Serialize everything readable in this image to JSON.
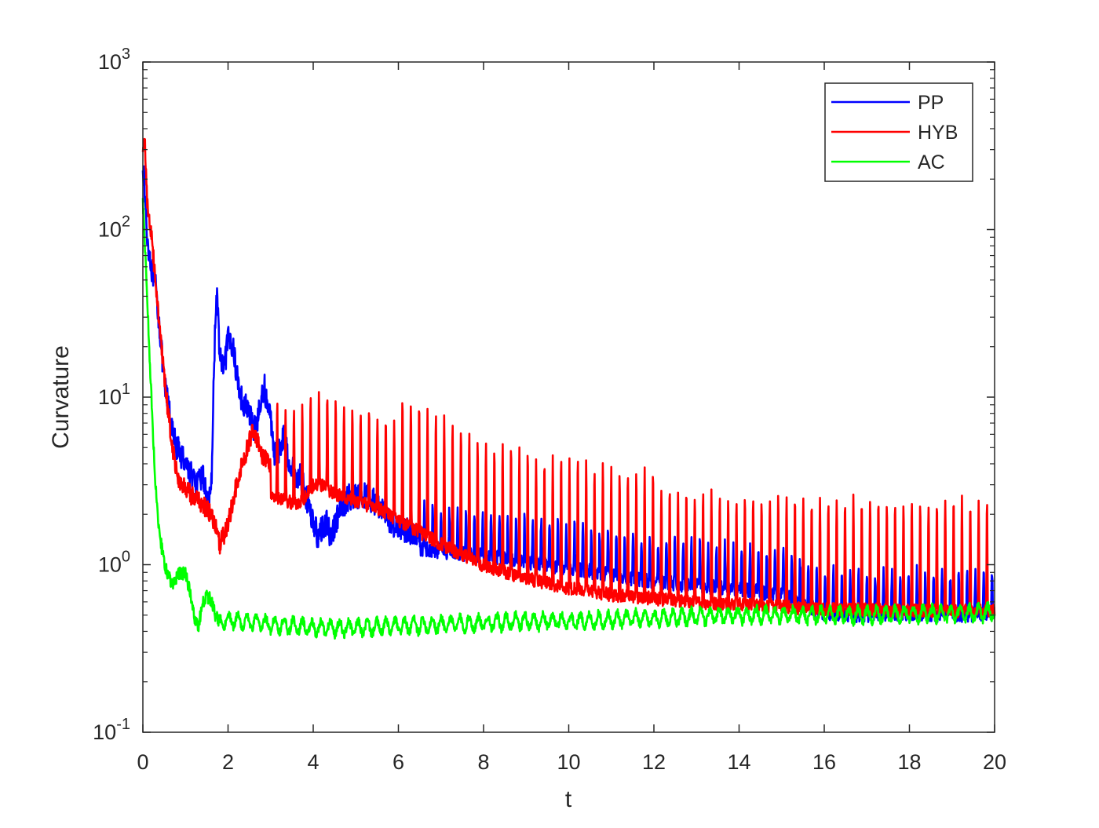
{
  "chart_data": {
    "type": "line",
    "title": "",
    "xlabel": "t",
    "ylabel": "Curvature",
    "xlim": [
      0,
      20
    ],
    "ylim": [
      0.1,
      1000
    ],
    "yscale": "log",
    "grid": false,
    "legend_position": "top-right",
    "x_ticks": [
      "0",
      "2",
      "4",
      "6",
      "8",
      "10",
      "12",
      "14",
      "16",
      "18",
      "20"
    ],
    "y_ticks": [
      {
        "base": "10",
        "exp": "-1",
        "value": 0.1
      },
      {
        "base": "10",
        "exp": "0",
        "value": 1
      },
      {
        "base": "10",
        "exp": "1",
        "value": 10
      },
      {
        "base": "10",
        "exp": "2",
        "value": 100
      },
      {
        "base": "10",
        "exp": "3",
        "value": 1000
      }
    ],
    "series": [
      {
        "name": "PP",
        "color": "#0000ff",
        "description_points": [
          [
            0,
            260
          ],
          [
            0.1,
            90
          ],
          [
            0.2,
            60
          ],
          [
            0.3,
            45
          ],
          [
            0.4,
            25
          ],
          [
            0.5,
            12
          ],
          [
            0.6,
            9
          ],
          [
            0.7,
            6
          ],
          [
            0.8,
            5
          ],
          [
            0.9,
            4.5
          ],
          [
            1.0,
            4.2
          ],
          [
            1.1,
            3.6
          ],
          [
            1.2,
            3.2
          ],
          [
            1.3,
            3.0
          ],
          [
            1.4,
            3.5
          ],
          [
            1.5,
            2.5
          ],
          [
            1.6,
            2.4
          ],
          [
            1.7,
            30
          ],
          [
            1.75,
            40
          ],
          [
            1.8,
            18
          ],
          [
            1.9,
            14
          ],
          [
            2.0,
            22
          ],
          [
            2.1,
            21
          ],
          [
            2.2,
            14
          ],
          [
            2.3,
            10
          ],
          [
            2.4,
            9
          ],
          [
            2.5,
            8
          ],
          [
            2.6,
            6.5
          ],
          [
            2.7,
            7.5
          ],
          [
            2.8,
            10
          ],
          [
            2.85,
            12
          ],
          [
            2.9,
            9.5
          ],
          [
            3.0,
            7.5
          ],
          [
            3.1,
            4.5
          ],
          [
            3.2,
            4.8
          ],
          [
            3.3,
            6.0
          ],
          [
            3.4,
            4.5
          ],
          [
            3.5,
            3.8
          ],
          [
            3.6,
            3.2
          ],
          [
            3.7,
            3.5
          ],
          [
            3.8,
            2.7
          ],
          [
            3.9,
            2.2
          ],
          [
            4.0,
            1.8
          ],
          [
            4.1,
            1.5
          ],
          [
            4.2,
            1.6
          ],
          [
            4.3,
            1.8
          ],
          [
            4.4,
            1.5
          ],
          [
            4.5,
            1.7
          ],
          [
            4.6,
            2.0
          ],
          [
            4.7,
            2.2
          ],
          [
            4.8,
            2.5
          ],
          [
            5.0,
            2.6
          ],
          [
            5.2,
            2.6
          ],
          [
            5.4,
            2.4
          ],
          [
            5.6,
            2.2
          ],
          [
            5.8,
            1.8
          ],
          [
            6.0,
            1.7
          ],
          [
            6.2,
            1.6
          ],
          [
            6.5,
            1.5
          ],
          [
            7.0,
            1.45
          ],
          [
            8,
            1.35
          ],
          [
            9,
            1.25
          ],
          [
            10,
            1.15
          ],
          [
            11,
            1.05
          ],
          [
            12,
            0.95
          ],
          [
            13,
            0.9
          ],
          [
            14,
            0.85
          ],
          [
            15,
            0.8
          ],
          [
            16,
            0.62
          ],
          [
            17,
            0.6
          ],
          [
            18,
            0.62
          ],
          [
            19,
            0.6
          ],
          [
            20,
            0.62
          ]
        ]
      },
      {
        "name": "HYB",
        "color": "#ff0000",
        "description_points": [
          [
            0,
            300
          ],
          [
            0.05,
            330
          ],
          [
            0.1,
            150
          ],
          [
            0.2,
            90
          ],
          [
            0.3,
            50
          ],
          [
            0.4,
            25
          ],
          [
            0.5,
            13
          ],
          [
            0.6,
            8
          ],
          [
            0.7,
            5
          ],
          [
            0.8,
            3.5
          ],
          [
            0.9,
            3.0
          ],
          [
            1.0,
            2.8
          ],
          [
            1.2,
            2.5
          ],
          [
            1.4,
            2.3
          ],
          [
            1.6,
            2.0
          ],
          [
            1.7,
            1.7
          ],
          [
            1.8,
            1.3
          ],
          [
            1.9,
            1.5
          ],
          [
            2.0,
            1.8
          ],
          [
            2.1,
            2.3
          ],
          [
            2.2,
            3.0
          ],
          [
            2.3,
            3.8
          ],
          [
            2.4,
            4.5
          ],
          [
            2.5,
            5.5
          ],
          [
            2.6,
            6.5
          ],
          [
            2.7,
            5.5
          ],
          [
            2.8,
            4.5
          ],
          [
            3.0,
            4.0
          ],
          [
            3.2,
            3.8
          ],
          [
            3.4,
            3.6
          ],
          [
            3.6,
            3.5
          ],
          [
            3.8,
            3.8
          ],
          [
            4.0,
            4.5
          ],
          [
            4.2,
            4.5
          ],
          [
            4.5,
            4.0
          ],
          [
            5.0,
            3.6
          ],
          [
            5.5,
            3.3
          ],
          [
            6,
            2.8
          ],
          [
            7,
            2.0
          ],
          [
            8,
            1.5
          ],
          [
            9,
            1.25
          ],
          [
            10,
            1.1
          ],
          [
            11,
            1.0
          ],
          [
            12,
            0.95
          ],
          [
            13,
            0.9
          ],
          [
            14,
            0.88
          ],
          [
            15,
            0.85
          ],
          [
            16,
            0.82
          ],
          [
            17,
            0.82
          ],
          [
            18,
            0.8
          ],
          [
            19,
            0.8
          ],
          [
            20,
            0.8
          ]
        ]
      },
      {
        "name": "AC",
        "color": "#00ff00",
        "description_points": [
          [
            0,
            150
          ],
          [
            0.05,
            80
          ],
          [
            0.1,
            40
          ],
          [
            0.15,
            20
          ],
          [
            0.2,
            10
          ],
          [
            0.25,
            5
          ],
          [
            0.3,
            3
          ],
          [
            0.35,
            2
          ],
          [
            0.4,
            1.5
          ],
          [
            0.5,
            1.0
          ],
          [
            0.6,
            0.85
          ],
          [
            0.7,
            0.75
          ],
          [
            0.8,
            0.85
          ],
          [
            0.9,
            0.9
          ],
          [
            1.0,
            0.88
          ],
          [
            1.1,
            0.7
          ],
          [
            1.2,
            0.5
          ],
          [
            1.3,
            0.42
          ],
          [
            1.4,
            0.6
          ],
          [
            1.5,
            0.65
          ],
          [
            1.6,
            0.62
          ],
          [
            1.7,
            0.5
          ],
          [
            1.8,
            0.45
          ],
          [
            2,
            0.47
          ],
          [
            3,
            0.44
          ],
          [
            4,
            0.42
          ],
          [
            5,
            0.42
          ],
          [
            6,
            0.43
          ],
          [
            7,
            0.44
          ],
          [
            8,
            0.45
          ],
          [
            9,
            0.46
          ],
          [
            10,
            0.46
          ],
          [
            11,
            0.47
          ],
          [
            12,
            0.48
          ],
          [
            13,
            0.49
          ],
          [
            14,
            0.5
          ],
          [
            15,
            0.5
          ],
          [
            16,
            0.5
          ],
          [
            17,
            0.5
          ],
          [
            18,
            0.51
          ],
          [
            19,
            0.51
          ],
          [
            20,
            0.52
          ]
        ]
      }
    ]
  }
}
